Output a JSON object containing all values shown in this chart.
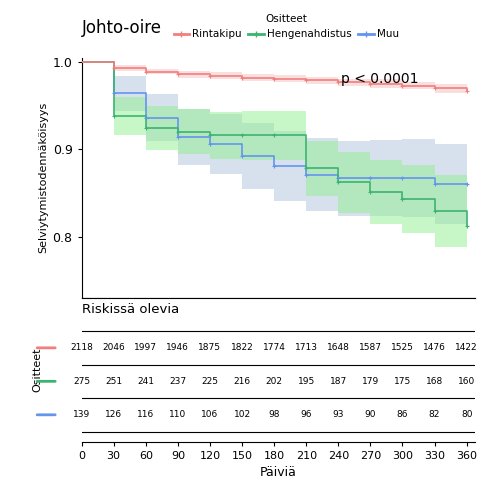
{
  "title": "Johto-oire",
  "ylabel": "Selviytymistodennäköisyys",
  "xlabel": "Päiviä",
  "pvalue": "p < 0.0001",
  "legend_title": "Ositteet",
  "legend_labels": [
    "Rintakipu",
    "Hengenahdistus",
    "Muu"
  ],
  "colors": {
    "rintakipu": "#F08080",
    "hengenahdistus": "#3CB371",
    "muu": "#6495ED"
  },
  "fill_colors": {
    "rintakipu": "#F9C0C0",
    "hengenahdistus": "#90EE90",
    "muu": "#B0C4DE"
  },
  "time_points": [
    0,
    30,
    60,
    90,
    120,
    150,
    180,
    210,
    240,
    270,
    300,
    330,
    360
  ],
  "rintakipu": {
    "surv": [
      1.0,
      0.993,
      0.989,
      0.986,
      0.984,
      0.982,
      0.981,
      0.979,
      0.977,
      0.975,
      0.973,
      0.97,
      0.967
    ],
    "upper": [
      1.0,
      0.996,
      0.992,
      0.99,
      0.988,
      0.986,
      0.985,
      0.983,
      0.981,
      0.98,
      0.977,
      0.975,
      0.972
    ],
    "lower": [
      1.0,
      0.99,
      0.986,
      0.982,
      0.98,
      0.978,
      0.977,
      0.975,
      0.973,
      0.97,
      0.969,
      0.965,
      0.962
    ]
  },
  "hengenahdistus": {
    "surv": [
      1.0,
      0.938,
      0.924,
      0.92,
      0.916,
      0.916,
      0.916,
      0.878,
      0.862,
      0.851,
      0.843,
      0.829,
      0.812
    ],
    "upper": [
      1.0,
      0.96,
      0.949,
      0.946,
      0.943,
      0.944,
      0.944,
      0.91,
      0.897,
      0.888,
      0.882,
      0.87,
      0.854
    ],
    "lower": [
      1.0,
      0.916,
      0.899,
      0.894,
      0.889,
      0.888,
      0.888,
      0.846,
      0.827,
      0.814,
      0.804,
      0.788,
      0.77
    ]
  },
  "muu": {
    "surv": [
      1.0,
      0.964,
      0.936,
      0.914,
      0.906,
      0.892,
      0.881,
      0.871,
      0.867,
      0.867,
      0.867,
      0.86,
      0.86
    ],
    "upper": [
      1.0,
      0.984,
      0.963,
      0.946,
      0.94,
      0.93,
      0.921,
      0.913,
      0.91,
      0.911,
      0.912,
      0.906,
      0.908
    ],
    "lower": [
      1.0,
      0.944,
      0.909,
      0.882,
      0.872,
      0.854,
      0.841,
      0.829,
      0.824,
      0.823,
      0.822,
      0.814,
      0.812
    ]
  },
  "risk_table": {
    "title": "Riskissä olevia",
    "rintakipu": [
      2118,
      2046,
      1997,
      1946,
      1875,
      1822,
      1774,
      1713,
      1648,
      1587,
      1525,
      1476,
      1422
    ],
    "hengenahdistus": [
      275,
      251,
      241,
      237,
      225,
      216,
      202,
      195,
      187,
      179,
      175,
      168,
      160
    ],
    "muu": [
      139,
      126,
      116,
      110,
      106,
      102,
      98,
      96,
      93,
      90,
      86,
      82,
      80
    ]
  },
  "ylim": [
    0.73,
    1.005
  ],
  "yticks": [
    0.8,
    0.9,
    1.0
  ],
  "ytick_labels": [
    "0.8",
    "0.9",
    "1.0"
  ],
  "background_color": "#FFFFFF"
}
